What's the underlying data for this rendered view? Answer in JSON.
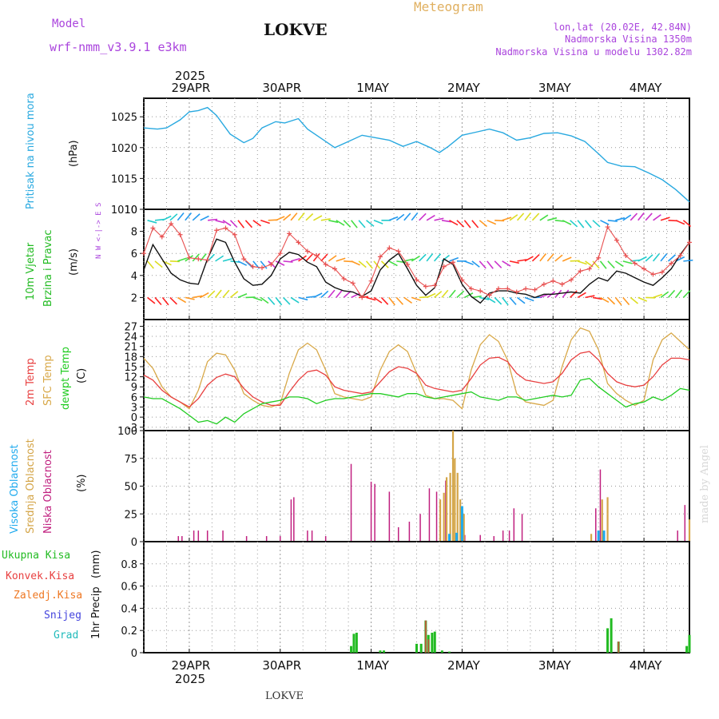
{
  "header": {
    "model_label": "Model",
    "model_name": "wrf-nmm_v3.9.1 e3km",
    "location": "LOKVE",
    "title": "Meteogram",
    "coords": "lon,lat (20.02E, 42.84N)",
    "elevation": "Nadmorska Visina 1350m",
    "model_elevation": "Nadmorska Visina u modelu 1302.82m",
    "year_top": "2025",
    "year_bottom": "2025",
    "footer_location": "LOKVE",
    "watermark": "made by Angel"
  },
  "colors": {
    "pressure": "#29a9e0",
    "wind_label": "#22bb22",
    "wind_mean": "#111111",
    "wind_gust": "#e85050",
    "temp2m": "#e84040",
    "sfc": "#d8a848",
    "dewpt": "#22cc22",
    "cloud_high": "#1faaee",
    "cloud_mid": "#d4a548",
    "cloud_low": "#c0207f",
    "precip_total": "#22bb22",
    "precip_conv": "#e84040",
    "precip_frozen": "#ee7722",
    "precip_snow": "#4444dd",
    "precip_hail": "#22bbbb",
    "purple_text": "#aa44dd",
    "orange_text": "#e0b060"
  },
  "chart_data": {
    "type": "meteogram",
    "x_days": [
      "29APR",
      "30APR",
      "1MAY",
      "2MAY",
      "3MAY",
      "4MAY"
    ],
    "x_start_day": -0.5,
    "x_end_day": 5.5,
    "panels": [
      {
        "id": "pressure",
        "type": "line",
        "ylabel": "Pritisak na nivou mora",
        "unit": "(hPa)",
        "ylim": [
          1010,
          1028
        ],
        "yticks": [
          "1010",
          "1015",
          "1020",
          "1025"
        ],
        "x": [
          -0.5,
          -0.35,
          -0.25,
          -0.1,
          0.0,
          0.1,
          0.2,
          0.3,
          0.45,
          0.6,
          0.7,
          0.8,
          0.95,
          1.05,
          1.2,
          1.3,
          1.45,
          1.6,
          1.75,
          1.9,
          2.05,
          2.2,
          2.35,
          2.5,
          2.65,
          2.75,
          2.85,
          3.0,
          3.15,
          3.3,
          3.45,
          3.6,
          3.75,
          3.9,
          4.05,
          4.2,
          4.35,
          4.5,
          4.6,
          4.75,
          4.9,
          5.05,
          5.2,
          5.35,
          5.5
        ],
        "values": [
          1023.2,
          1023.0,
          1023.2,
          1024.5,
          1025.8,
          1026.0,
          1026.5,
          1025.2,
          1022.2,
          1020.8,
          1021.5,
          1023.2,
          1024.2,
          1024.0,
          1024.7,
          1023.0,
          1021.5,
          1020.0,
          1021.0,
          1022.0,
          1021.6,
          1021.2,
          1020.2,
          1021.0,
          1020.0,
          1019.2,
          1020.2,
          1022.0,
          1022.5,
          1023.0,
          1022.4,
          1021.2,
          1021.6,
          1022.3,
          1022.4,
          1021.9,
          1021.0,
          1019.0,
          1017.6,
          1017.0,
          1016.9,
          1015.9,
          1014.8,
          1013.2,
          1011.2
        ]
      },
      {
        "id": "wind",
        "type": "line",
        "ylabel_line1": "10m Vjetar",
        "ylabel_line2": "Brzina i Pravac",
        "unit": "(m/s)",
        "ylim": [
          0,
          10
        ],
        "yticks": [
          "2",
          "4",
          "6",
          "8",
          "10"
        ],
        "compass": "N  W <-|-> E  S",
        "barb_rows": [
          2,
          5.3,
          9
        ],
        "x": [
          -0.5,
          -0.4,
          -0.3,
          -0.2,
          -0.1,
          0.0,
          0.1,
          0.2,
          0.3,
          0.4,
          0.5,
          0.6,
          0.7,
          0.8,
          0.9,
          1.0,
          1.1,
          1.2,
          1.3,
          1.4,
          1.5,
          1.6,
          1.7,
          1.8,
          1.9,
          2.0,
          2.1,
          2.2,
          2.3,
          2.4,
          2.5,
          2.6,
          2.7,
          2.8,
          2.9,
          3.0,
          3.1,
          3.2,
          3.3,
          3.4,
          3.5,
          3.6,
          3.7,
          3.8,
          3.9,
          4.0,
          4.1,
          4.2,
          4.3,
          4.4,
          4.5,
          4.6,
          4.7,
          4.8,
          4.9,
          5.0,
          5.1,
          5.2,
          5.3,
          5.4,
          5.5
        ],
        "series": [
          {
            "name": "mean",
            "values": [
              4.5,
              6.8,
              5.5,
              4.2,
              3.6,
              3.3,
              3.2,
              5.5,
              7.3,
              7.0,
              5.2,
              3.7,
              3.1,
              3.2,
              4.0,
              5.5,
              6.1,
              5.9,
              5.2,
              4.8,
              3.4,
              2.9,
              2.6,
              2.5,
              2.1,
              2.6,
              4.5,
              5.4,
              6.0,
              4.6,
              3.1,
              2.2,
              2.9,
              5.5,
              5.0,
              3.2,
              2.1,
              1.5,
              2.4,
              2.6,
              2.6,
              2.4,
              2.3,
              2.0,
              2.3,
              2.3,
              2.4,
              2.5,
              2.4,
              3.2,
              3.8,
              3.5,
              4.4,
              4.2,
              3.8,
              3.4,
              3.1,
              3.8,
              4.6,
              5.9,
              7.0
            ]
          },
          {
            "name": "gust",
            "values": [
              6.0,
              8.3,
              7.5,
              8.7,
              7.7,
              5.6,
              5.5,
              5.4,
              8.1,
              8.3,
              7.7,
              5.5,
              4.8,
              4.7,
              5.0,
              6.0,
              7.8,
              7.0,
              6.2,
              5.8,
              5.0,
              4.6,
              3.7,
              3.3,
              2.0,
              3.5,
              5.7,
              6.5,
              6.2,
              5.0,
              3.6,
              3.0,
              3.1,
              4.8,
              5.2,
              3.6,
              2.8,
              2.6,
              2.2,
              2.8,
              2.8,
              2.5,
              2.8,
              2.7,
              3.2,
              3.5,
              3.2,
              3.6,
              4.4,
              4.6,
              5.6,
              8.4,
              7.2,
              5.8,
              5.1,
              4.6,
              4.1,
              4.3,
              5.1,
              5.8,
              7.0
            ]
          }
        ]
      },
      {
        "id": "temperature",
        "type": "line",
        "ylabel_line1": "2m Temp",
        "ylabel_line2": "SFC Temp",
        "ylabel_line3": "dewpt Temp",
        "unit": "(C)",
        "ylim": [
          -4,
          29
        ],
        "yticks": [
          "-3",
          "0",
          "3",
          "6",
          "9",
          "12",
          "15",
          "18",
          "21",
          "24",
          "27"
        ],
        "x": [
          -0.5,
          -0.4,
          -0.3,
          -0.2,
          -0.1,
          0.0,
          0.1,
          0.2,
          0.3,
          0.4,
          0.5,
          0.6,
          0.7,
          0.8,
          0.9,
          1.0,
          1.1,
          1.2,
          1.3,
          1.4,
          1.5,
          1.6,
          1.7,
          1.8,
          1.9,
          2.0,
          2.1,
          2.2,
          2.3,
          2.4,
          2.5,
          2.6,
          2.7,
          2.8,
          2.9,
          3.0,
          3.1,
          3.2,
          3.3,
          3.4,
          3.5,
          3.6,
          3.7,
          3.8,
          3.9,
          4.0,
          4.1,
          4.2,
          4.3,
          4.4,
          4.5,
          4.6,
          4.7,
          4.8,
          4.9,
          5.0,
          5.1,
          5.2,
          5.3,
          5.4,
          5.5
        ],
        "series": [
          {
            "name": "2m Temp",
            "values": [
              12.5,
              11.0,
              8.0,
              6.0,
              4.5,
              3.0,
              5.5,
              9.5,
              11.8,
              12.8,
              12.0,
              8.5,
              6.0,
              4.5,
              3.5,
              3.5,
              7.5,
              11.0,
              13.5,
              14.0,
              12.5,
              9.0,
              8.0,
              7.5,
              7.0,
              7.5,
              10.5,
              13.5,
              15.0,
              14.5,
              13.0,
              9.5,
              8.5,
              8.0,
              7.5,
              8.0,
              11.5,
              15.5,
              17.5,
              17.8,
              16.5,
              13.0,
              11.0,
              10.5,
              10.0,
              10.5,
              13.0,
              17.0,
              19.0,
              19.5,
              17.0,
              13.0,
              10.5,
              9.5,
              9.0,
              9.5,
              12.0,
              15.5,
              17.5,
              17.5,
              17.0
            ]
          },
          {
            "name": "SFC Temp",
            "values": [
              17.5,
              14.5,
              9.0,
              6.0,
              4.5,
              2.5,
              8.0,
              16.5,
              19.0,
              18.5,
              14.0,
              7.0,
              5.0,
              3.5,
              3.0,
              4.0,
              13.0,
              20.0,
              22.0,
              20.0,
              14.0,
              7.0,
              6.0,
              5.5,
              5.0,
              6.0,
              14.0,
              19.5,
              21.5,
              19.5,
              13.0,
              6.5,
              5.5,
              5.5,
              5.0,
              2.5,
              14.0,
              21.5,
              24.5,
              22.5,
              17.0,
              7.0,
              4.5,
              4.0,
              3.5,
              5.0,
              15.0,
              23.0,
              26.5,
              25.5,
              20.0,
              10.0,
              7.0,
              5.0,
              3.5,
              5.0,
              17.0,
              23.0,
              25.0,
              22.5,
              20.0
            ]
          },
          {
            "name": "dewpt Temp",
            "values": [
              6.0,
              5.5,
              5.5,
              4.0,
              2.5,
              0.5,
              -1.5,
              -1.0,
              -2.0,
              0.0,
              -1.5,
              1.0,
              2.5,
              4.0,
              4.5,
              5.0,
              6.0,
              6.0,
              5.5,
              4.0,
              5.0,
              5.5,
              5.5,
              6.0,
              6.5,
              7.0,
              7.0,
              6.5,
              6.0,
              7.0,
              7.0,
              6.0,
              5.5,
              6.0,
              6.5,
              7.0,
              7.5,
              6.0,
              5.5,
              5.0,
              6.0,
              6.0,
              5.0,
              5.5,
              6.0,
              6.5,
              6.0,
              6.5,
              11.0,
              11.5,
              9.0,
              7.0,
              5.0,
              3.0,
              4.0,
              4.5,
              6.0,
              5.0,
              6.5,
              8.5,
              8.0
            ]
          }
        ]
      },
      {
        "id": "clouds",
        "type": "bar",
        "ylabel_line1": "Visoka Oblacnost",
        "ylabel_line2": "Srednja Oblacnost",
        "ylabel_line3": "Niska Oblacnost",
        "unit": "(%)",
        "ylim": [
          0,
          100
        ],
        "yticks": [
          "0",
          "25",
          "50",
          "75",
          "100"
        ],
        "series": [
          {
            "name": "Niska",
            "points": [
              [
                -0.12,
                5
              ],
              [
                -0.08,
                5
              ],
              [
                0.05,
                10
              ],
              [
                0.1,
                10
              ],
              [
                0.2,
                10
              ],
              [
                0.37,
                10
              ],
              [
                0.63,
                5
              ],
              [
                0.85,
                5
              ],
              [
                1.0,
                5
              ],
              [
                1.12,
                38
              ],
              [
                1.15,
                40
              ],
              [
                1.3,
                10
              ],
              [
                1.35,
                10
              ],
              [
                1.5,
                5
              ],
              [
                1.78,
                70
              ],
              [
                2.0,
                54
              ],
              [
                2.04,
                52
              ],
              [
                2.2,
                45
              ],
              [
                2.3,
                13
              ],
              [
                2.42,
                18
              ],
              [
                2.54,
                25
              ],
              [
                2.64,
                48
              ],
              [
                2.72,
                45
              ],
              [
                2.82,
                55
              ],
              [
                2.9,
                48
              ],
              [
                3.03,
                6
              ],
              [
                3.2,
                6
              ],
              [
                3.35,
                5
              ],
              [
                3.45,
                10
              ],
              [
                3.52,
                10
              ],
              [
                3.57,
                30
              ],
              [
                3.66,
                25
              ],
              [
                4.52,
                65
              ],
              [
                4.47,
                30
              ],
              [
                5.37,
                10
              ],
              [
                5.45,
                33
              ]
            ]
          },
          {
            "name": "Srednja",
            "points": [
              [
                2.76,
                38
              ],
              [
                2.8,
                44
              ],
              [
                2.83,
                58
              ],
              [
                2.87,
                62
              ],
              [
                2.9,
                100
              ],
              [
                2.92,
                75
              ],
              [
                2.95,
                62
              ],
              [
                2.98,
                38
              ],
              [
                3.02,
                25
              ],
              [
                4.42,
                7
              ],
              [
                4.54,
                38
              ],
              [
                4.6,
                40
              ],
              [
                5.5,
                20
              ]
            ]
          },
          {
            "name": "Visoka",
            "points": [
              [
                2.86,
                7
              ],
              [
                2.94,
                8
              ],
              [
                3.0,
                32
              ],
              [
                4.5,
                10
              ],
              [
                4.56,
                10
              ]
            ]
          }
        ]
      },
      {
        "id": "precipitation",
        "type": "bar",
        "ylabel": "1hr Precip",
        "unit": "(mm)",
        "ylim": [
          0,
          1.0
        ],
        "yticks": [
          "0",
          "0.2",
          "0.4",
          "0.6",
          "0.8"
        ],
        "legend": [
          "Ukupna Kisa",
          "Konvek.Kisa",
          "Zaledj.Kisa",
          "Snijeg",
          "Grad"
        ],
        "series": [
          {
            "name": "Ukupna Kisa",
            "points": [
              [
                1.78,
                0.06
              ],
              [
                1.81,
                0.17
              ],
              [
                1.84,
                0.18
              ],
              [
                2.1,
                0.02
              ],
              [
                2.14,
                0.02
              ],
              [
                2.5,
                0.08
              ],
              [
                2.55,
                0.08
              ],
              [
                2.6,
                0.29
              ],
              [
                2.63,
                0.16
              ],
              [
                2.67,
                0.18
              ],
              [
                2.7,
                0.19
              ],
              [
                2.78,
                0.02
              ],
              [
                2.86,
                0.01
              ],
              [
                4.6,
                0.22
              ],
              [
                4.64,
                0.31
              ],
              [
                4.72,
                0.1
              ],
              [
                5.47,
                0.06
              ],
              [
                5.5,
                0.16
              ]
            ]
          },
          {
            "name": "Konvek.Kisa",
            "points": [
              [
                2.6,
                0.29
              ],
              [
                2.63,
                0.12
              ],
              [
                4.72,
                0.1
              ]
            ]
          }
        ]
      }
    ]
  }
}
